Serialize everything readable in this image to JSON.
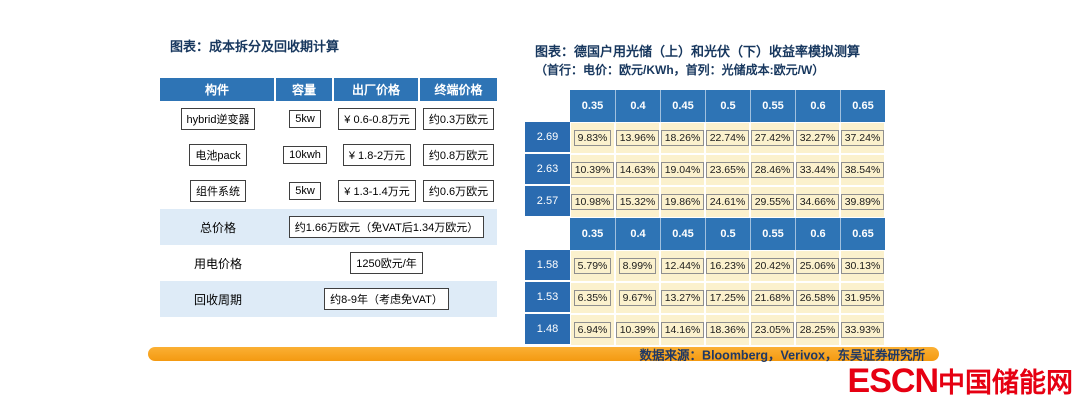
{
  "colors": {
    "header_blue": "#2E74B5",
    "row_header_blue": "#2A6BB0",
    "highlight_light_blue": "#DEEBF7",
    "cell_cream": "#FBF1CD",
    "source_bar_orange": "#F49A11",
    "title_navy": "#17375E",
    "logo_red": "#E60012"
  },
  "left": {
    "title": "图表：成本拆分及回收期计算",
    "headers": [
      "构件",
      "容量",
      "出厂价格",
      "终端价格"
    ],
    "rows": [
      {
        "c0": "hybrid逆变器",
        "c1": "5kw",
        "c2": "¥ 0.6-0.8万元",
        "c3": "约0.3万欧元"
      },
      {
        "c0": "电池pack",
        "c1": "10kwh",
        "c2": "¥ 1.8-2万元",
        "c3": "约0.8万欧元"
      },
      {
        "c0": "组件系统",
        "c1": "5kw",
        "c2": "¥ 1.3-1.4万元",
        "c3": "约0.6万欧元"
      }
    ],
    "summary": [
      {
        "label": "总价格",
        "value": "约1.66万欧元（免VAT后1.34万欧元）"
      },
      {
        "label": "用电价格",
        "value": "1250欧元/年"
      },
      {
        "label": "回收周期",
        "value": "约8-9年（考虑免VAT）"
      }
    ]
  },
  "right": {
    "title": "图表：德国户用光储（上）和光伏（下）收益率模拟测算",
    "subtitle": "（首行：电价：欧元/KWh，首列：光储成本:欧元/W）",
    "storage": {
      "headers": [
        "0.35",
        "0.4",
        "0.45",
        "0.5",
        "0.55",
        "0.6",
        "0.65"
      ],
      "rows": [
        {
          "cost": "2.69",
          "v": [
            "9.83%",
            "13.96%",
            "18.26%",
            "22.74%",
            "27.42%",
            "32.27%",
            "37.24%"
          ]
        },
        {
          "cost": "2.63",
          "v": [
            "10.39%",
            "14.63%",
            "19.04%",
            "23.65%",
            "28.46%",
            "33.44%",
            "38.54%"
          ]
        },
        {
          "cost": "2.57",
          "v": [
            "10.98%",
            "15.32%",
            "19.86%",
            "24.61%",
            "29.55%",
            "34.66%",
            "39.89%"
          ]
        }
      ]
    },
    "pv": {
      "headers": [
        "0.35",
        "0.4",
        "0.45",
        "0.5",
        "0.55",
        "0.6",
        "0.65"
      ],
      "rows": [
        {
          "cost": "1.58",
          "v": [
            "5.79%",
            "8.99%",
            "12.44%",
            "16.23%",
            "20.42%",
            "25.06%",
            "30.13%"
          ]
        },
        {
          "cost": "1.53",
          "v": [
            "6.35%",
            "9.67%",
            "13.27%",
            "17.25%",
            "21.68%",
            "26.58%",
            "31.95%"
          ]
        },
        {
          "cost": "1.48",
          "v": [
            "6.94%",
            "10.39%",
            "14.16%",
            "18.36%",
            "23.05%",
            "28.25%",
            "33.93%"
          ]
        }
      ]
    }
  },
  "footer": {
    "source": "数据来源：Bloomberg，Verivox，东吴证券研究所"
  },
  "logo": {
    "en": "ESCN",
    "cn": "中国储能网"
  },
  "chart_data": [
    {
      "type": "table",
      "title": "成本拆分及回收期计算",
      "columns": [
        "构件",
        "容量",
        "出厂价格",
        "终端价格"
      ],
      "rows": [
        [
          "hybrid逆变器",
          "5kw",
          "¥ 0.6-0.8万元",
          "约0.3万欧元"
        ],
        [
          "电池pack",
          "10kwh",
          "¥ 1.8-2万元",
          "约0.8万欧元"
        ],
        [
          "组件系统",
          "5kw",
          "¥ 1.3-1.4万元",
          "约0.6万欧元"
        ],
        [
          "总价格",
          "约1.66万欧元（免VAT后1.34万欧元）"
        ],
        [
          "用电价格",
          "1250欧元/年"
        ],
        [
          "回收周期",
          "约8-9年（考虑免VAT）"
        ]
      ]
    },
    {
      "type": "table",
      "title": "德国户用光储收益率模拟测算（上）",
      "electricity_price_eur_per_kwh": [
        0.35,
        0.4,
        0.45,
        0.5,
        0.55,
        0.6,
        0.65
      ],
      "storage_cost_eur_per_w": [
        2.69,
        2.63,
        2.57
      ],
      "yield_percent": [
        [
          9.83,
          13.96,
          18.26,
          22.74,
          27.42,
          32.27,
          37.24
        ],
        [
          10.39,
          14.63,
          19.04,
          23.65,
          28.46,
          33.44,
          38.54
        ],
        [
          10.98,
          15.32,
          19.86,
          24.61,
          29.55,
          34.66,
          39.89
        ]
      ]
    },
    {
      "type": "table",
      "title": "德国户用光伏收益率模拟测算（下）",
      "electricity_price_eur_per_kwh": [
        0.35,
        0.4,
        0.45,
        0.5,
        0.55,
        0.6,
        0.65
      ],
      "pv_cost_eur_per_w": [
        1.58,
        1.53,
        1.48
      ],
      "yield_percent": [
        [
          5.79,
          8.99,
          12.44,
          16.23,
          20.42,
          25.06,
          30.13
        ],
        [
          6.35,
          9.67,
          13.27,
          17.25,
          21.68,
          26.58,
          31.95
        ],
        [
          6.94,
          10.39,
          14.16,
          18.36,
          23.05,
          28.25,
          33.93
        ]
      ]
    }
  ]
}
